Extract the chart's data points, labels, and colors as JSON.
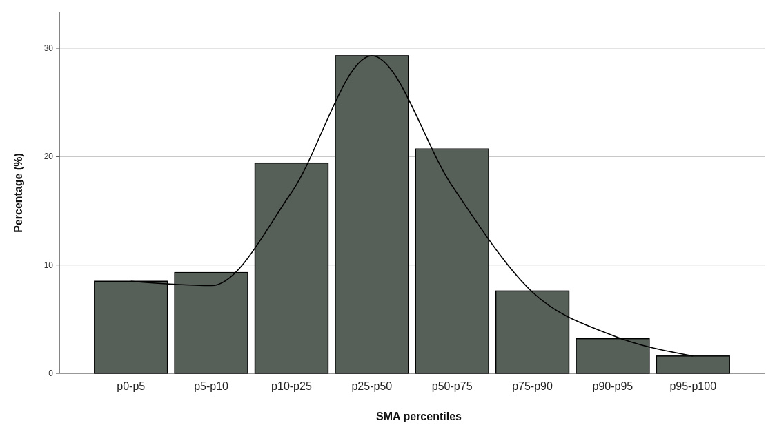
{
  "chart_data": {
    "type": "bar",
    "xlabel": "SMA percentiles",
    "ylabel": "Percentage (%)",
    "categories": [
      "p0-p5",
      "p5-p10",
      "p10-p25",
      "p25-p50",
      "p50-p75",
      "p75-p90",
      "p90-p95",
      "p95-p100"
    ],
    "series": [
      {
        "color": "#566058",
        "values": [
          8.5,
          9.3,
          19.4,
          29.3,
          20.7,
          7.6,
          3.2,
          1.6
        ]
      },
      {
        "type": "line",
        "color": "#000000",
        "values": [
          8.5,
          8.1,
          16.7,
          29.3,
          17.3,
          7.5,
          3.5,
          1.6
        ]
      }
    ],
    "ylim": [
      0,
      33.3
    ],
    "yticks": [
      0,
      10,
      20,
      30
    ],
    "grid": "y",
    "marker": "none",
    "line_style": "solid"
  }
}
